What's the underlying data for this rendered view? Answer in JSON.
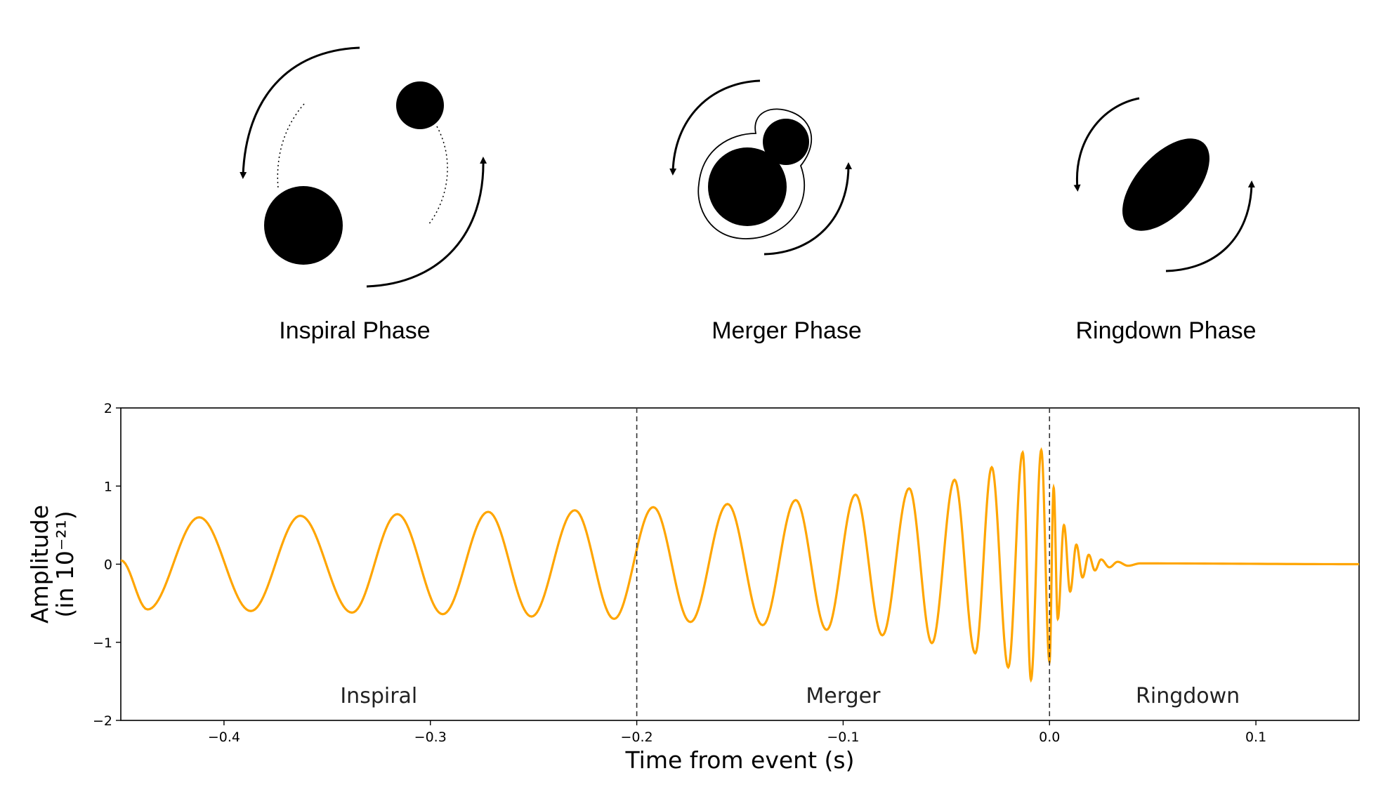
{
  "phases": {
    "inspiral_label": "Inspiral Phase",
    "merger_label": "Merger Phase",
    "ringdown_label": "Ringdown Phase"
  },
  "chart_data": {
    "type": "line",
    "xlabel": "Time from event (s)",
    "ylabel_line1": "Amplitude",
    "ylabel_line2": "(in 10⁻²¹)",
    "xlim": [
      -0.45,
      0.15
    ],
    "ylim": [
      -2,
      2
    ],
    "xticks": [
      -0.4,
      -0.3,
      -0.2,
      -0.1,
      0.0,
      0.1
    ],
    "xtick_labels": [
      "−0.4",
      "−0.3",
      "−0.2",
      "−0.1",
      "0.0",
      "0.1"
    ],
    "yticks": [
      -2,
      -1,
      0,
      1,
      2
    ],
    "ytick_labels": [
      "−2",
      "−1",
      "0",
      "1",
      "2"
    ],
    "region_boundaries": [
      -0.2,
      0.0
    ],
    "regions": [
      {
        "label": "Inspiral",
        "x": -0.325
      },
      {
        "label": "Merger",
        "x": -0.1
      },
      {
        "label": "Ringdown",
        "x": 0.067
      }
    ],
    "series": [
      {
        "color": "#FFA500",
        "peaks": [
          {
            "t": -0.437,
            "a": -0.58
          },
          {
            "t": -0.412,
            "a": 0.6
          },
          {
            "t": -0.387,
            "a": -0.6
          },
          {
            "t": -0.363,
            "a": 0.62
          },
          {
            "t": -0.338,
            "a": -0.62
          },
          {
            "t": -0.316,
            "a": 0.64
          },
          {
            "t": -0.294,
            "a": -0.64
          },
          {
            "t": -0.272,
            "a": 0.67
          },
          {
            "t": -0.251,
            "a": -0.67
          },
          {
            "t": -0.23,
            "a": 0.69
          },
          {
            "t": -0.211,
            "a": -0.7
          },
          {
            "t": -0.192,
            "a": 0.73
          },
          {
            "t": -0.174,
            "a": -0.74
          },
          {
            "t": -0.156,
            "a": 0.77
          },
          {
            "t": -0.139,
            "a": -0.78
          },
          {
            "t": -0.123,
            "a": 0.82
          },
          {
            "t": -0.108,
            "a": -0.84
          },
          {
            "t": -0.094,
            "a": 0.89
          },
          {
            "t": -0.081,
            "a": -0.91
          },
          {
            "t": -0.068,
            "a": 0.97
          },
          {
            "t": -0.057,
            "a": -1.01
          },
          {
            "t": -0.046,
            "a": 1.08
          },
          {
            "t": -0.036,
            "a": -1.14
          },
          {
            "t": -0.028,
            "a": 1.24
          },
          {
            "t": -0.02,
            "a": -1.32
          },
          {
            "t": -0.013,
            "a": 1.43
          },
          {
            "t": -0.009,
            "a": -1.48
          },
          {
            "t": -0.004,
            "a": 1.46
          },
          {
            "t": 0.0,
            "a": -1.25
          },
          {
            "t": 0.002,
            "a": 0.98
          },
          {
            "t": 0.004,
            "a": -0.7
          },
          {
            "t": 0.007,
            "a": 0.5
          },
          {
            "t": 0.01,
            "a": -0.35
          },
          {
            "t": 0.013,
            "a": 0.25
          },
          {
            "t": 0.016,
            "a": -0.17
          },
          {
            "t": 0.019,
            "a": 0.12
          },
          {
            "t": 0.022,
            "a": -0.08
          },
          {
            "t": 0.025,
            "a": 0.06
          },
          {
            "t": 0.029,
            "a": -0.04
          },
          {
            "t": 0.033,
            "a": 0.03
          },
          {
            "t": 0.038,
            "a": -0.02
          },
          {
            "t": 0.044,
            "a": 0.01
          },
          {
            "t": 0.15,
            "a": 0.0
          }
        ]
      }
    ]
  }
}
